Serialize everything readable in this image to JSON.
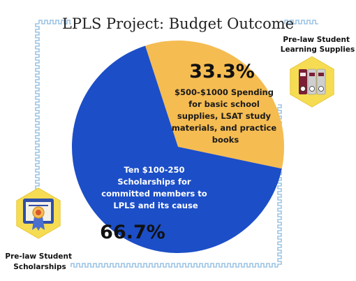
{
  "chart_data": {
    "type": "pie",
    "title": "LPLS Project: Budget Outcome",
    "slices": [
      {
        "value": 33.3,
        "percent_label": "33.3%",
        "color": "#f5bc52",
        "text_color": "#1a1a1a",
        "label_lines": [
          "$500-$1000 Spending",
          "for basic school",
          "supplies, LSAT study",
          "materials, and practice",
          "books"
        ]
      },
      {
        "value": 66.7,
        "percent_label": "66.7%",
        "color": "#1c4ec7",
        "text_color": "#ffffff",
        "label_lines": [
          "Ten $100-250",
          "Scholarships for",
          "committed members to",
          "LPLS and its cause"
        ]
      }
    ]
  },
  "icons": {
    "supplies": {
      "name": "binders-icon",
      "label_lines": [
        "Pre-law Student",
        "Learning Supplies"
      ]
    },
    "scholarships": {
      "name": "certificate-ribbon-icon",
      "label_lines": [
        "Pre-law Student",
        "Scholarships"
      ]
    }
  },
  "colors": {
    "frame": "#9cc4e4",
    "hexagon": "#f5dc52",
    "binder_dark": "#7a1f35",
    "binder_light": "#cfcfcf",
    "certificate_bg": "#2f4fa8",
    "ribbon": "#4a6fd0"
  }
}
